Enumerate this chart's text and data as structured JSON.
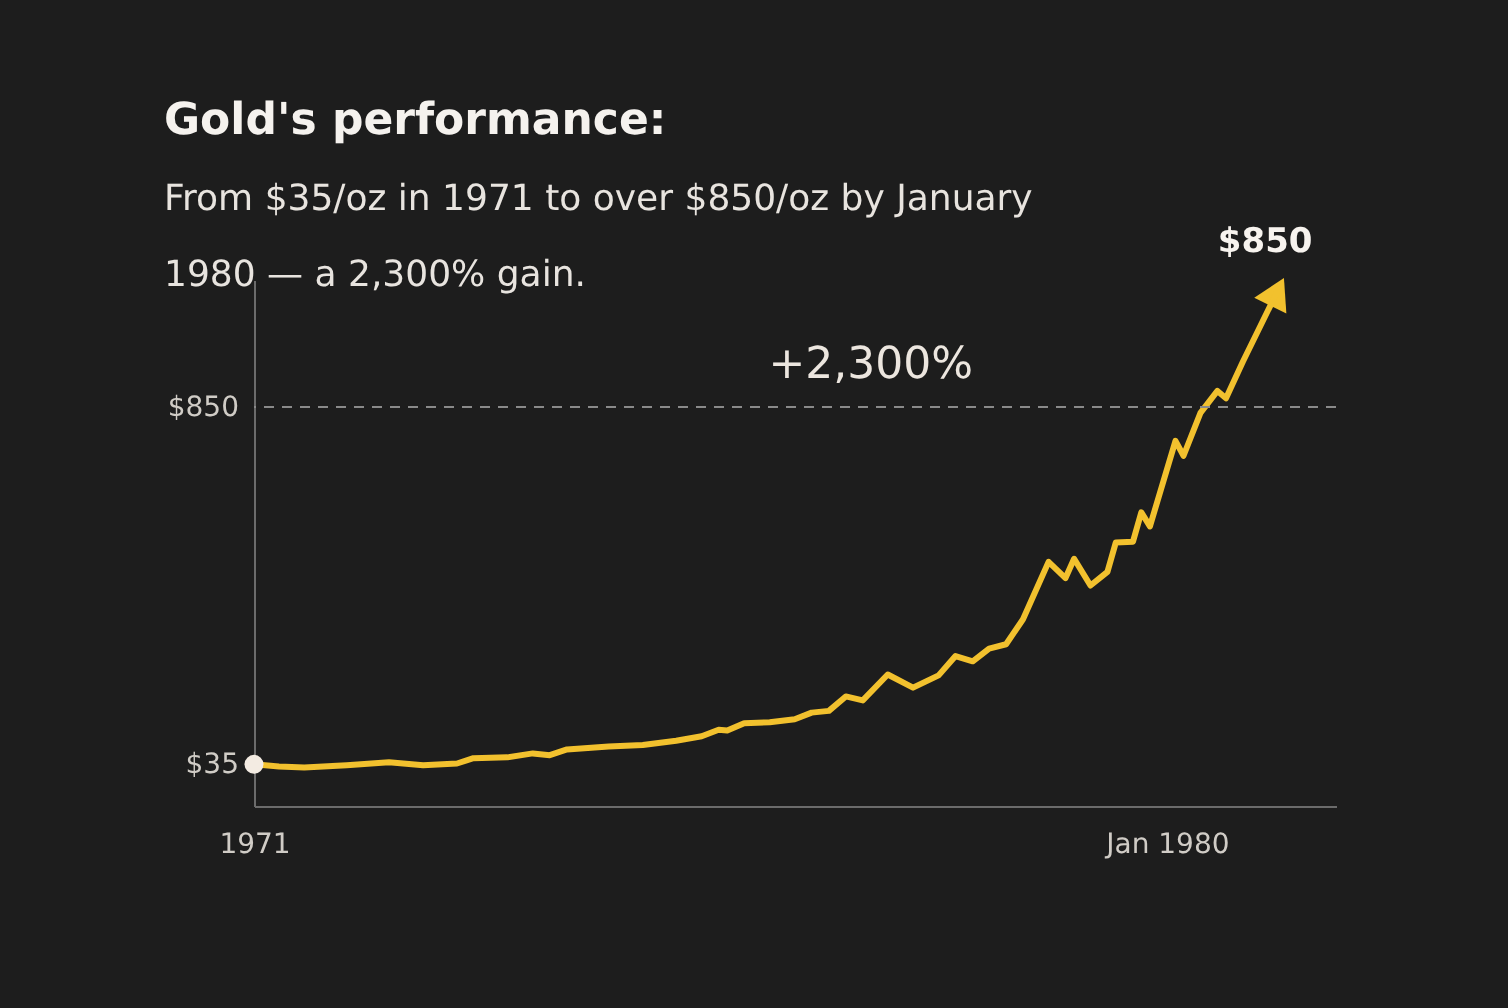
{
  "chart_data": {
    "type": "line",
    "title": "Gold's performance:",
    "subtitle": "From $35/oz in 1971 to over $850/oz by January 1980 — a 2,300% gain.",
    "annotations": [
      "+2,300%",
      {
        "text": "$850",
        "x": "1981-02",
        "y": 1113
      }
    ],
    "x": [
      "1971-01",
      "1971-04",
      "1971-07",
      "1971-12",
      "1972-05",
      "1972-09",
      "1973-01",
      "1973-03",
      "1973-07",
      "1973-10",
      "1973-12",
      "1974-02",
      "1974-07",
      "1974-11",
      "1975-03",
      "1975-06",
      "1975-08",
      "1975-09",
      "1975-11",
      "1976-02",
      "1976-05",
      "1976-07",
      "1976-09",
      "1976-11",
      "1977-01",
      "1977-04",
      "1977-07",
      "1977-10",
      "1977-12",
      "1978-02",
      "1978-04",
      "1978-06",
      "1978-08",
      "1978-11",
      "1979-01",
      "1979-02",
      "1979-04",
      "1979-06",
      "1979-07",
      "1979-09",
      "1979-10",
      "1979-11",
      "1980-02",
      "1980-03",
      "1980-05",
      "1980-07",
      "1980-08",
      "1980-10",
      "1981-02"
    ],
    "series": [
      {
        "color": "#f2c12e",
        "values": [
          35,
          30,
          28,
          33,
          40,
          33,
          37,
          49,
          51,
          60,
          56,
          69,
          76,
          79,
          89,
          99,
          114,
          112,
          129,
          131,
          138,
          153,
          157,
          190,
          181,
          240,
          210,
          238,
          282,
          270,
          299,
          309,
          366,
          497,
          460,
          504,
          443,
          474,
          541,
          543,
          610,
          578,
          773,
          739,
          837,
          887,
          870,
          954,
          1113
        ]
      }
    ],
    "xlim": [
      "1971-01",
      "1981-09"
    ],
    "xticks": [
      {
        "value": "1971-01",
        "label": "1971"
      },
      {
        "value": "1980-01",
        "label": "Jan 1980"
      }
    ],
    "ylim": [
      -60,
      1140
    ],
    "yticks": [
      {
        "value": 35,
        "label": "$35"
      },
      {
        "value": 850,
        "label": "$850"
      }
    ],
    "ref_lines": [
      {
        "axis": "y",
        "value": 850,
        "color": "#8a8a8a",
        "line_style": "dashed"
      }
    ],
    "grid": false,
    "line_style": "solid"
  }
}
